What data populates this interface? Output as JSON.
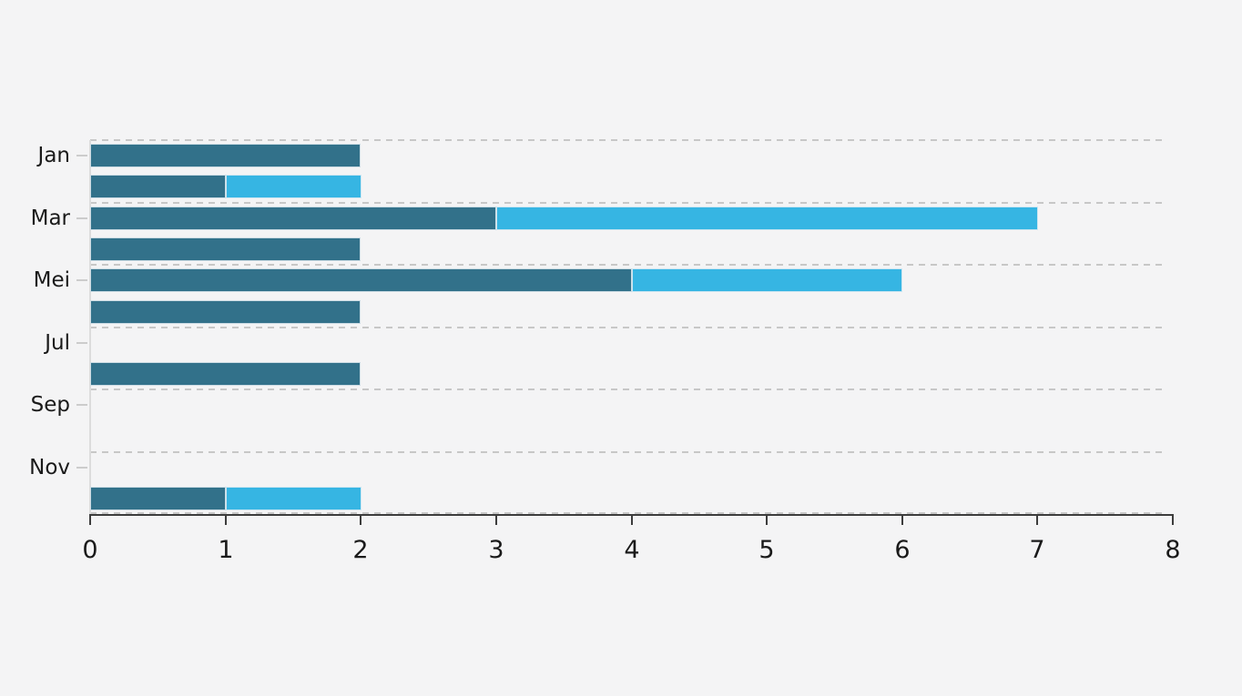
{
  "page": {
    "background_color": "#f4f4f5"
  },
  "colors": {
    "series_dark": "#32718a",
    "series_light": "#36b5e3",
    "gridline": "#c7c7c7",
    "x_axis": "#3d3d3d",
    "y_axis": "#dcdcdc",
    "y_tick_mark": "#cccccc",
    "tick_text": "#1a1a1a"
  },
  "chart_data": {
    "type": "bar",
    "orientation": "horizontal",
    "stacked": true,
    "title": "",
    "xlabel": "",
    "ylabel": "",
    "grid": "horizontal dashed lines between every pair of rows, plus dashed line along bottom axis",
    "legend": "none",
    "xlim": [
      0,
      8
    ],
    "x_tick_labels": [
      "0",
      "1",
      "2",
      "3",
      "4",
      "5",
      "6",
      "7",
      "8"
    ],
    "y_tick_labels": [
      "Jan",
      "",
      "Mar",
      "",
      "Mei",
      "",
      "Jul",
      "",
      "Sep",
      "",
      "Nov",
      ""
    ],
    "series": [
      {
        "name": "series-dark-teal",
        "color": "#32718a",
        "values": [
          2,
          1,
          3,
          2,
          4,
          2,
          0,
          2,
          0,
          0,
          0,
          1
        ]
      },
      {
        "name": "series-light-blue",
        "color": "#36b5e3",
        "values": [
          0,
          1,
          4,
          0,
          2,
          0,
          0,
          0,
          0,
          0,
          0,
          1
        ]
      }
    ],
    "row_totals": [
      2,
      2,
      7,
      2,
      6,
      2,
      0,
      2,
      0,
      0,
      0,
      2
    ]
  }
}
